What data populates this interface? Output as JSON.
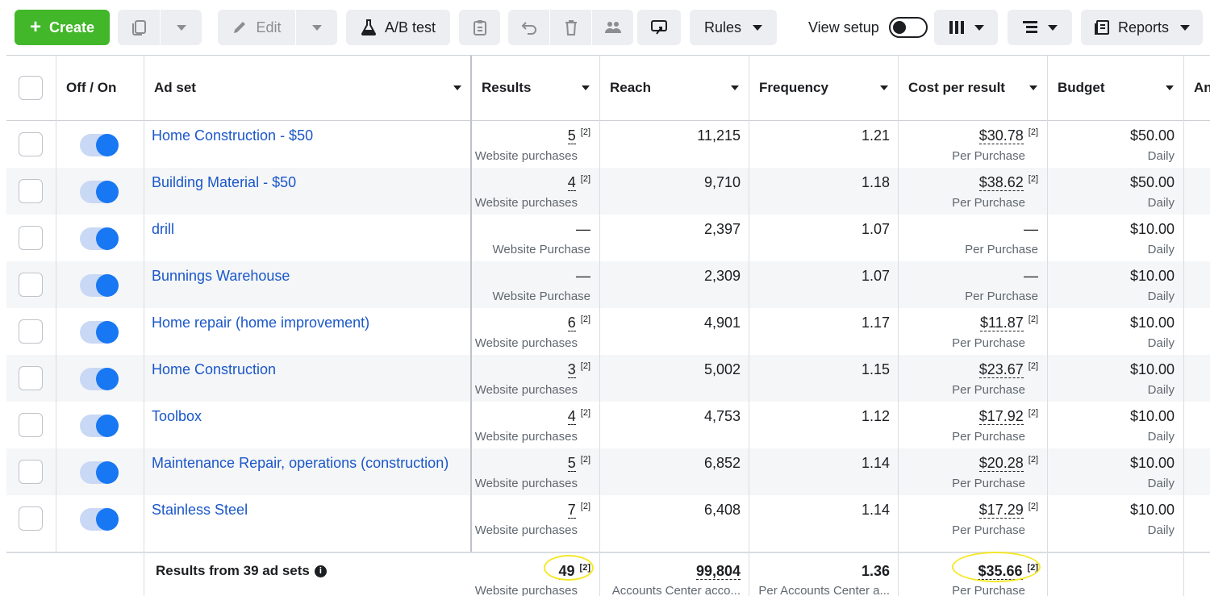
{
  "toolbar": {
    "create_label": "Create",
    "edit_label": "Edit",
    "ab_test_label": "A/B test",
    "rules_label": "Rules",
    "view_setup_label": "View setup",
    "reports_label": "Reports"
  },
  "columns": {
    "off_on": "Off / On",
    "ad_set": "Ad set",
    "results": "Results",
    "reach": "Reach",
    "frequency": "Frequency",
    "cost_per_result": "Cost per result",
    "budget": "Budget",
    "partial": "An"
  },
  "rows": [
    {
      "name": "Home Construction - $50",
      "results": "5",
      "results_sup": "[2]",
      "results_sub": "Website purchases",
      "reach": "11,215",
      "frequency": "1.21",
      "cost": "$30.78",
      "cost_sup": "[2]",
      "cost_sub": "Per Purchase",
      "budget": "$50.00",
      "budget_sub": "Daily"
    },
    {
      "name": "Building Material - $50",
      "results": "4",
      "results_sup": "[2]",
      "results_sub": "Website purchases",
      "reach": "9,710",
      "frequency": "1.18",
      "cost": "$38.62",
      "cost_sup": "[2]",
      "cost_sub": "Per Purchase",
      "budget": "$50.00",
      "budget_sub": "Daily"
    },
    {
      "name": "drill",
      "results": "—",
      "results_sup": "",
      "results_sub": "Website Purchase",
      "reach": "2,397",
      "frequency": "1.07",
      "cost": "—",
      "cost_sup": "",
      "cost_sub": "Per Purchase",
      "budget": "$10.00",
      "budget_sub": "Daily"
    },
    {
      "name": "Bunnings Warehouse",
      "results": "—",
      "results_sup": "",
      "results_sub": "Website Purchase",
      "reach": "2,309",
      "frequency": "1.07",
      "cost": "—",
      "cost_sup": "",
      "cost_sub": "Per Purchase",
      "budget": "$10.00",
      "budget_sub": "Daily"
    },
    {
      "name": "Home repair (home improvement)",
      "results": "6",
      "results_sup": "[2]",
      "results_sub": "Website purchases",
      "reach": "4,901",
      "frequency": "1.17",
      "cost": "$11.87",
      "cost_sup": "[2]",
      "cost_sub": "Per Purchase",
      "budget": "$10.00",
      "budget_sub": "Daily"
    },
    {
      "name": "Home Construction",
      "results": "3",
      "results_sup": "[2]",
      "results_sub": "Website purchases",
      "reach": "5,002",
      "frequency": "1.15",
      "cost": "$23.67",
      "cost_sup": "[2]",
      "cost_sub": "Per Purchase",
      "budget": "$10.00",
      "budget_sub": "Daily"
    },
    {
      "name": "Toolbox",
      "results": "4",
      "results_sup": "[2]",
      "results_sub": "Website purchases",
      "reach": "4,753",
      "frequency": "1.12",
      "cost": "$17.92",
      "cost_sup": "[2]",
      "cost_sub": "Per Purchase",
      "budget": "$10.00",
      "budget_sub": "Daily"
    },
    {
      "name": "Maintenance Repair, operations (construction)",
      "results": "5",
      "results_sup": "[2]",
      "results_sub": "Website purchases",
      "reach": "6,852",
      "frequency": "1.14",
      "cost": "$20.28",
      "cost_sup": "[2]",
      "cost_sub": "Per Purchase",
      "budget": "$10.00",
      "budget_sub": "Daily"
    },
    {
      "name": "Stainless Steel",
      "results": "7",
      "results_sup": "[2]",
      "results_sub": "Website purchases",
      "reach": "6,408",
      "frequency": "1.14",
      "cost": "$17.29",
      "cost_sup": "[2]",
      "cost_sub": "Per Purchase",
      "budget": "$10.00",
      "budget_sub": "Daily"
    }
  ],
  "footer": {
    "label": "Results from 39 ad sets",
    "results": "49",
    "results_sup": "[2]",
    "results_sub": "Website purchases",
    "reach": "99,804",
    "reach_sub": "Accounts Center acco...",
    "frequency": "1.36",
    "frequency_sub": "Per Accounts Center a...",
    "cost": "$35.66",
    "cost_sup": "[2]",
    "cost_sub": "Per Purchase"
  },
  "colors": {
    "accent": "#1877f2",
    "create_green": "#42b72a",
    "link_blue": "#1a57c9",
    "highlight_circle": "#f5e82a"
  }
}
